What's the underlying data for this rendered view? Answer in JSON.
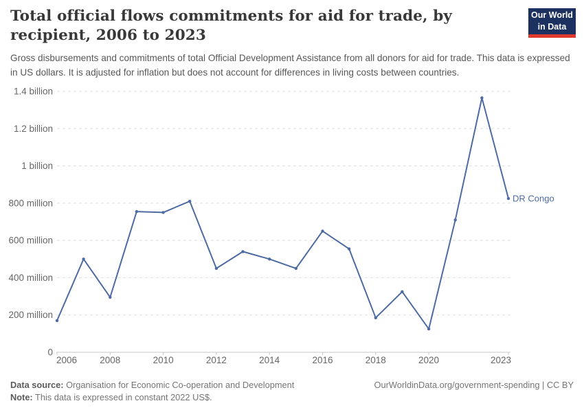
{
  "header": {
    "title": "Total official flows commitments for aid for trade, by recipient, 2006 to 2023",
    "subtitle": "Gross disbursements and commitments of total Official Development Assistance from all donors for aid for trade. This data is expressed in US dollars. It is adjusted for inflation but does not account for differences in living costs between countries.",
    "logo": {
      "line1": "Our World",
      "line2": "in Data"
    }
  },
  "chart_data": {
    "type": "line",
    "title": "Total official flows commitments for aid for trade, by recipient, 2006 to 2023",
    "xlabel": "",
    "ylabel": "",
    "values_unit": "million constant 2022 US$",
    "xlim": [
      2006,
      2023
    ],
    "ylim_millions": [
      0,
      1400
    ],
    "grid": true,
    "legend_position": "end-of-line-label",
    "x_ticks": [
      2006,
      2008,
      2010,
      2012,
      2014,
      2016,
      2018,
      2020,
      2023
    ],
    "y_ticks": [
      {
        "value": 0,
        "label": "0"
      },
      {
        "value": 200,
        "label": "200 million"
      },
      {
        "value": 400,
        "label": "400 million"
      },
      {
        "value": 600,
        "label": "600 million"
      },
      {
        "value": 800,
        "label": "800 million"
      },
      {
        "value": 1000,
        "label": "1 billion"
      },
      {
        "value": 1200,
        "label": "1.2 billion"
      },
      {
        "value": 1400,
        "label": "1.4 billion"
      }
    ],
    "series": [
      {
        "name": "DR Congo",
        "color": "#4c6ba2",
        "x": [
          2006,
          2007,
          2008,
          2009,
          2010,
          2011,
          2012,
          2013,
          2014,
          2015,
          2016,
          2017,
          2018,
          2019,
          2020,
          2021,
          2022,
          2023
        ],
        "values": [
          170,
          500,
          295,
          755,
          750,
          810,
          450,
          540,
          500,
          450,
          650,
          555,
          185,
          325,
          125,
          710,
          1365,
          825
        ]
      }
    ]
  },
  "footer": {
    "datasource_label": "Data source:",
    "datasource": "Organisation for Economic Co-operation and Development",
    "note_label": "Note:",
    "note": "This data is expressed in constant 2022 US$.",
    "link": "OurWorldinData.org/government-spending | CC BY"
  },
  "colors": {
    "line": "#4c6ba2",
    "grid": "#dedede",
    "axis": "#c7c7c7",
    "tick_text": "#666666",
    "title_text": "#383838",
    "subtitle_text": "#575757",
    "logo_bg": "#1d3160",
    "logo_red": "#e0392e"
  }
}
